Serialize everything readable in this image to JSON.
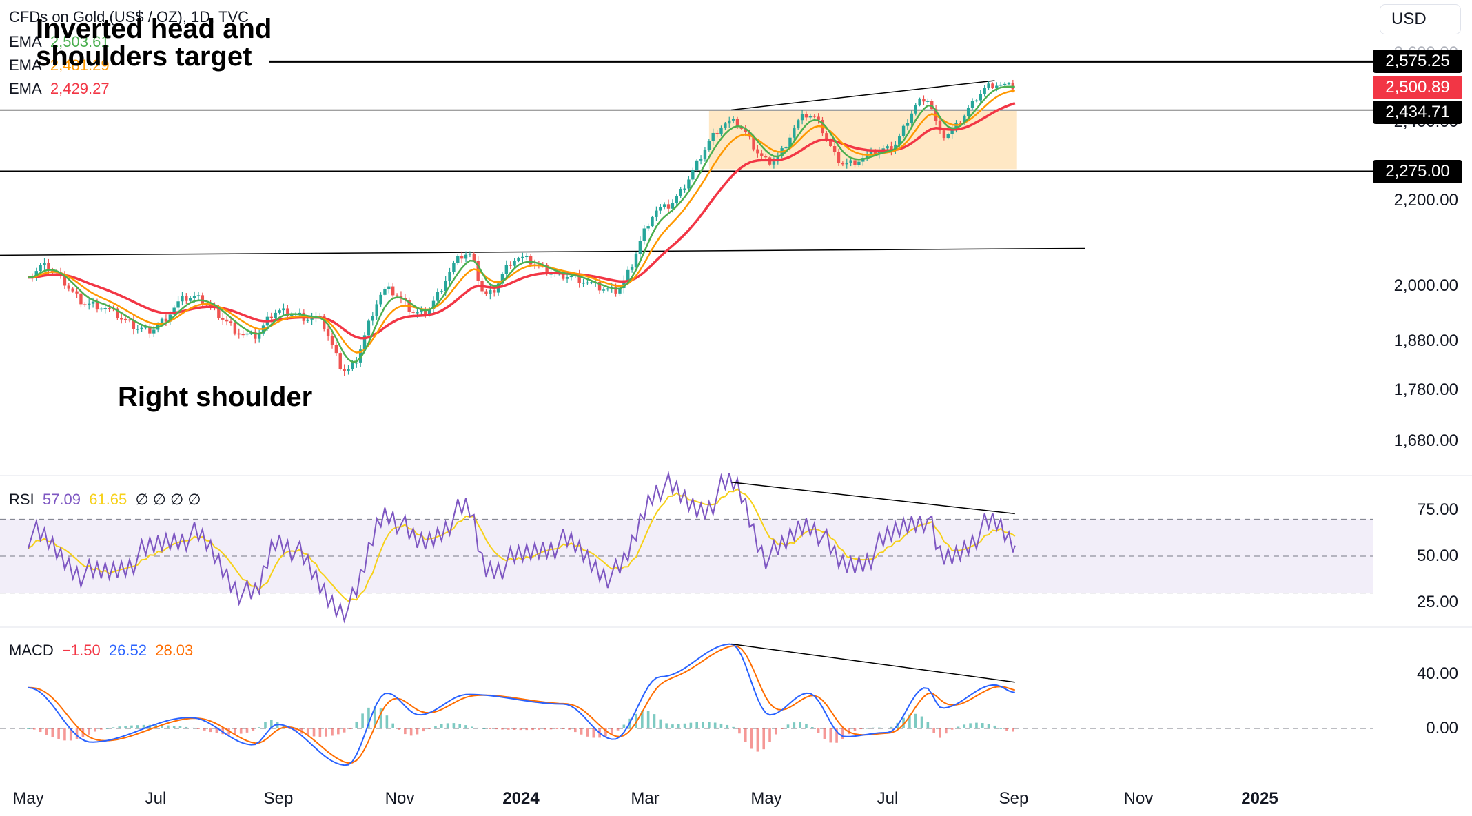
{
  "legend": {
    "title": "CFDs on Gold (US$ / OZ), 1D, TVC",
    "ema_label": "EMA",
    "ema_values": [
      {
        "value": "2,503.61",
        "color": "#4caf50"
      },
      {
        "value": "2,481.29",
        "color": "#ff9800"
      },
      {
        "value": "2,429.27",
        "color": "#f23645"
      }
    ]
  },
  "annotations": {
    "target_line1": "Inverted head and",
    "target_line2": "shoulders target",
    "right_shoulder": "Right shoulder"
  },
  "currency": "USD",
  "price_tags": {
    "target": "2,575.25",
    "last": "2,500.89",
    "resistance": "2,434.71",
    "support": "2,275.00"
  },
  "rsi": {
    "label": "RSI",
    "value": "57.09",
    "signal": "61.65",
    "extra": "∅ ∅ ∅ ∅"
  },
  "macd": {
    "label": "MACD",
    "hist": "−1.50",
    "macd": "26.52",
    "signal": "28.03"
  },
  "chart_data": {
    "type": "line",
    "series": [
      {
        "name": "EMA",
        "color": "#4caf50"
      },
      {
        "name": "EMA",
        "color": "#ff9800"
      },
      {
        "name": "EMA",
        "color": "#f23645"
      }
    ],
    "x_ticks": [
      "May",
      "Jul",
      "Sep",
      "Nov",
      "2024",
      "Mar",
      "May",
      "Jul",
      "Sep",
      "Nov",
      "2025"
    ],
    "price_axis_ticks": [
      "2,600.00",
      "2,400.00",
      "2,200.00",
      "2,000.00",
      "1,880.00",
      "1,780.00",
      "1,680.00"
    ],
    "price_axis_values": [
      2600,
      2400,
      2200,
      2000,
      1880,
      1780,
      1680
    ],
    "price_key_points": [
      {
        "date": "2023-05-01",
        "price": 2020
      },
      {
        "date": "2023-05-08",
        "price": 2045
      },
      {
        "date": "2023-06-01",
        "price": 1960
      },
      {
        "date": "2023-06-29",
        "price": 1905
      },
      {
        "date": "2023-07-20",
        "price": 1975
      },
      {
        "date": "2023-08-20",
        "price": 1890
      },
      {
        "date": "2023-09-01",
        "price": 1945
      },
      {
        "date": "2023-09-20",
        "price": 1930
      },
      {
        "date": "2023-10-05",
        "price": 1820
      },
      {
        "date": "2023-10-25",
        "price": 1990
      },
      {
        "date": "2023-11-10",
        "price": 1940
      },
      {
        "date": "2023-12-04",
        "price": 2075
      },
      {
        "date": "2023-12-13",
        "price": 1980
      },
      {
        "date": "2023-12-28",
        "price": 2065
      },
      {
        "date": "2024-01-20",
        "price": 2025
      },
      {
        "date": "2024-02-14",
        "price": 1990
      },
      {
        "date": "2024-03-08",
        "price": 2180
      },
      {
        "date": "2024-04-12",
        "price": 2400
      },
      {
        "date": "2024-05-01",
        "price": 2300
      },
      {
        "date": "2024-05-20",
        "price": 2420
      },
      {
        "date": "2024-06-07",
        "price": 2295
      },
      {
        "date": "2024-06-28",
        "price": 2330
      },
      {
        "date": "2024-07-17",
        "price": 2470
      },
      {
        "date": "2024-07-25",
        "price": 2365
      },
      {
        "date": "2024-08-20",
        "price": 2510
      },
      {
        "date": "2024-08-30",
        "price": 2501
      }
    ],
    "horizontal_levels": [
      2575.25,
      2434.71,
      2275.0
    ],
    "consolidation_box": {
      "from": "2024-04-01",
      "to": "2024-08-31",
      "low": 2280,
      "high": 2432
    },
    "neckline": {
      "from": [
        "2023-05-01",
        2072
      ],
      "to": [
        "2024-09-30",
        2088
      ]
    },
    "price_trendline": {
      "from": [
        "2024-04-12",
        2435
      ],
      "to": [
        "2024-08-20",
        2520
      ]
    },
    "rsi_ticks": [
      "75.00",
      "50.00",
      "25.00"
    ],
    "rsi_values": [
      75,
      50,
      25
    ],
    "rsi_key_points": [
      {
        "date": "2023-05-01",
        "value": 62
      },
      {
        "date": "2023-06-01",
        "value": 40
      },
      {
        "date": "2023-07-20",
        "value": 61
      },
      {
        "date": "2023-08-20",
        "value": 28
      },
      {
        "date": "2023-09-01",
        "value": 59
      },
      {
        "date": "2023-10-05",
        "value": 22
      },
      {
        "date": "2023-10-25",
        "value": 74
      },
      {
        "date": "2023-11-10",
        "value": 57
      },
      {
        "date": "2023-12-04",
        "value": 75
      },
      {
        "date": "2023-12-13",
        "value": 44
      },
      {
        "date": "2024-01-20",
        "value": 57
      },
      {
        "date": "2024-02-14",
        "value": 40
      },
      {
        "date": "2024-03-08",
        "value": 88
      },
      {
        "date": "2024-03-28",
        "value": 76
      },
      {
        "date": "2024-04-12",
        "value": 89
      },
      {
        "date": "2024-05-01",
        "value": 50
      },
      {
        "date": "2024-05-20",
        "value": 68
      },
      {
        "date": "2024-06-07",
        "value": 45
      },
      {
        "date": "2024-07-17",
        "value": 71
      },
      {
        "date": "2024-07-25",
        "value": 48
      },
      {
        "date": "2024-08-20",
        "value": 67
      },
      {
        "date": "2024-08-30",
        "value": 57
      }
    ],
    "rsi_trendline": {
      "from": [
        "2024-04-12",
        90
      ],
      "to": [
        "2024-08-30",
        73
      ]
    },
    "macd_ticks": [
      "40.00",
      "0.00"
    ],
    "macd_values": [
      40,
      0
    ],
    "macd_key_points": [
      {
        "date": "2023-05-01",
        "value": 30
      },
      {
        "date": "2023-06-01",
        "value": -10
      },
      {
        "date": "2023-07-20",
        "value": 8
      },
      {
        "date": "2023-08-20",
        "value": -12
      },
      {
        "date": "2023-09-01",
        "value": 3
      },
      {
        "date": "2023-10-05",
        "value": -27
      },
      {
        "date": "2023-10-25",
        "value": 26
      },
      {
        "date": "2023-11-10",
        "value": 10
      },
      {
        "date": "2023-12-04",
        "value": 25
      },
      {
        "date": "2024-01-20",
        "value": 18
      },
      {
        "date": "2024-02-14",
        "value": -8
      },
      {
        "date": "2024-03-08",
        "value": 38
      },
      {
        "date": "2024-04-12",
        "value": 62
      },
      {
        "date": "2024-05-01",
        "value": 10
      },
      {
        "date": "2024-05-20",
        "value": 26
      },
      {
        "date": "2024-06-07",
        "value": -6
      },
      {
        "date": "2024-06-28",
        "value": -3
      },
      {
        "date": "2024-07-17",
        "value": 30
      },
      {
        "date": "2024-07-25",
        "value": 15
      },
      {
        "date": "2024-08-20",
        "value": 32
      },
      {
        "date": "2024-08-30",
        "value": 26.5
      }
    ],
    "macd_trendline": {
      "from": [
        "2024-04-12",
        62
      ],
      "to": [
        "2024-08-30",
        34
      ]
    }
  }
}
